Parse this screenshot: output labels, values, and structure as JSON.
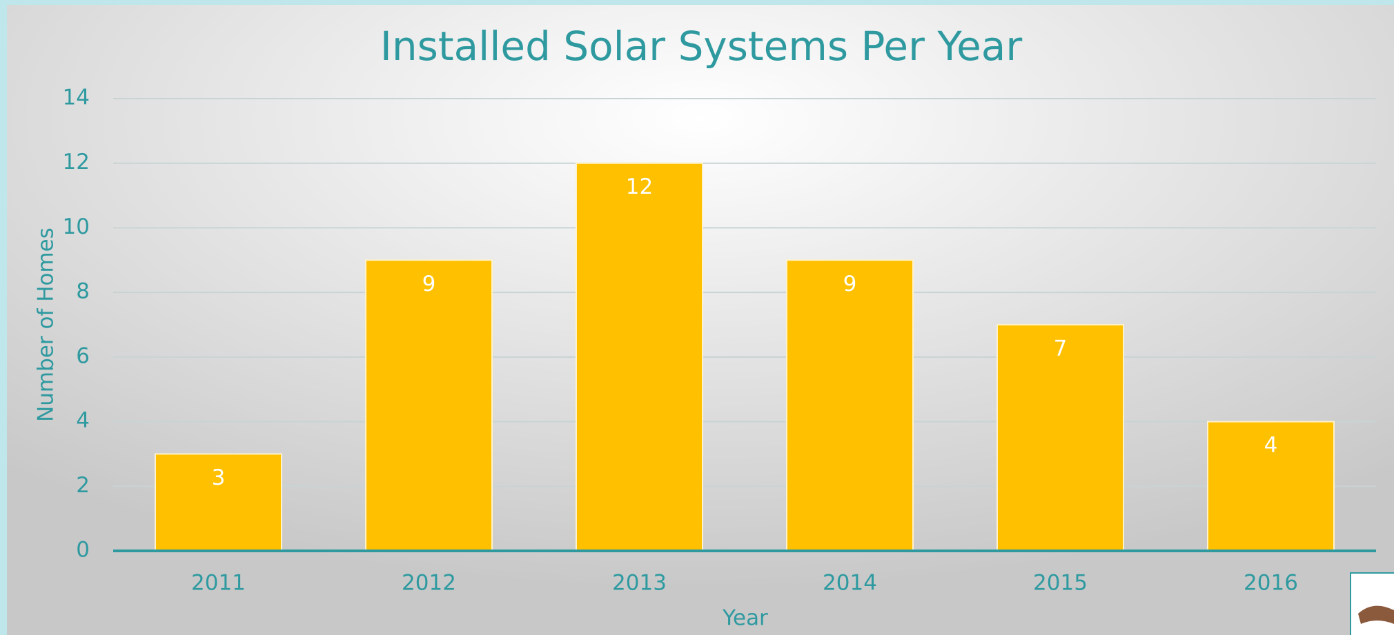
{
  "chart_data": {
    "type": "bar",
    "title": "Installed Solar Systems Per Year",
    "x_label": "Year",
    "y_label": "Number of Homes",
    "categories": [
      "2011",
      "2012",
      "2013",
      "2014",
      "2015",
      "2016"
    ],
    "values": [
      3,
      9,
      12,
      9,
      7,
      4
    ],
    "color": "#ffc000",
    "ylim": [
      0,
      14
    ],
    "yticks": [
      0,
      2,
      4,
      6,
      8,
      10,
      12,
      14
    ],
    "grid": true
  }
}
